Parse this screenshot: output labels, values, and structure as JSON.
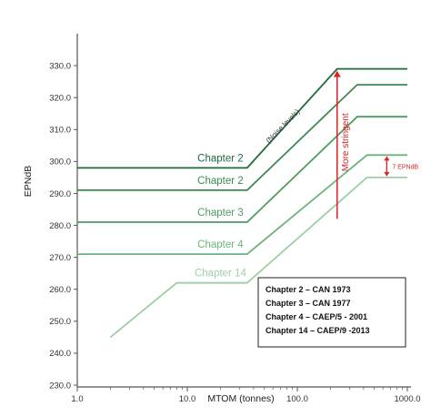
{
  "chart_data": {
    "type": "line",
    "xlabel": "MTOM (tonnes)",
    "ylabel": "EPNdB",
    "xscale": "log",
    "xlim": [
      1,
      1000
    ],
    "ylim": [
      230,
      340
    ],
    "x_ticks": [
      "1.0",
      "10.0",
      "100.0",
      "1000.0"
    ],
    "y_ticks": [
      "230.0",
      "240.0",
      "250.0",
      "260.0",
      "270.0",
      "280.0",
      "290.0",
      "300.0",
      "310.0",
      "320.0",
      "330.0"
    ],
    "grid": false,
    "series": [
      {
        "name": "Chapter 2",
        "color": "#1f6b3a",
        "points": [
          [
            1,
            298
          ],
          [
            35,
            298
          ],
          [
            230,
            329
          ],
          [
            1000,
            329
          ]
        ]
      },
      {
        "name": "Chapter 2",
        "color": "#3c8a52",
        "points": [
          [
            1,
            291
          ],
          [
            35,
            291
          ],
          [
            350,
            324
          ],
          [
            1000,
            324
          ]
        ]
      },
      {
        "name": "Chapter 3",
        "color": "#4f9c62",
        "points": [
          [
            1,
            281
          ],
          [
            35,
            281
          ],
          [
            350,
            314
          ],
          [
            1000,
            314
          ]
        ]
      },
      {
        "name": "Chapter 4",
        "color": "#6cb47b",
        "points": [
          [
            1,
            271
          ],
          [
            35,
            271
          ],
          [
            430,
            302
          ],
          [
            1000,
            302
          ]
        ]
      },
      {
        "name": "Chapter 14",
        "color": "#9fcfa7",
        "points": [
          [
            2,
            245
          ],
          [
            8,
            262
          ],
          [
            35,
            262
          ],
          [
            430,
            295
          ],
          [
            1000,
            295
          ]
        ]
      }
    ],
    "series_labels": [
      "Chapter 2",
      "Chapter 2",
      "Chapter 3",
      "Chapter 4",
      "Chapter 14"
    ],
    "annotations": {
      "diagonal": "(Noise levels)",
      "vertical": "More stringent",
      "gap": "7 EPNdB"
    },
    "legend_box": [
      "Chapter 2 – CAN 1973",
      "Chapter 3 – CAN 1977",
      "Chapter 4 – CAEP/5 - 2001",
      "Chapter 14 – CAEP/9 -2013"
    ],
    "colors": {
      "annotation": "#dd2222",
      "axis": "#555555"
    }
  }
}
